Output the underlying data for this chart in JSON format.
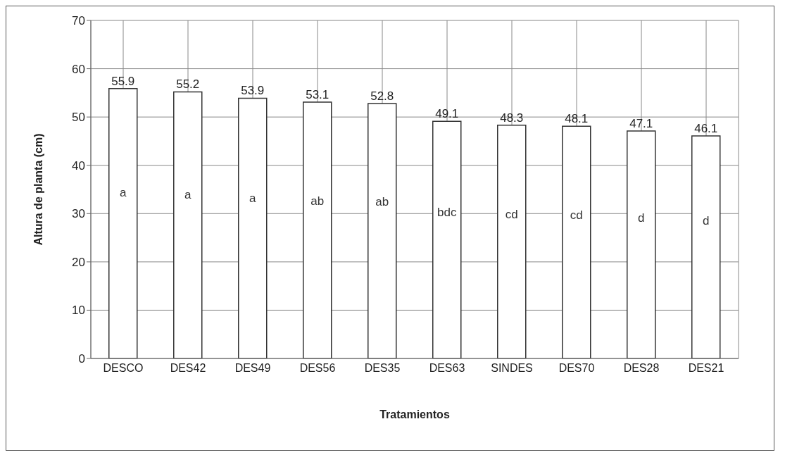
{
  "chart_data": {
    "type": "bar",
    "xlabel": "Tratamientos",
    "ylabel": "Altura de planta (cm)",
    "categories": [
      "DESCO",
      "DES42",
      "DES49",
      "DES56",
      "DES35",
      "DES63",
      "SINDES",
      "DES70",
      "DES28",
      "DES21"
    ],
    "values": [
      55.9,
      55.2,
      53.9,
      53.1,
      52.8,
      49.1,
      48.3,
      48.1,
      47.1,
      46.1
    ],
    "color": "#ffffff",
    "data_labels": true,
    "ylim": [
      0,
      70
    ],
    "yticks": [
      0,
      10,
      20,
      30,
      40,
      50,
      60,
      70
    ],
    "grid": true,
    "legend": false,
    "annotations": [
      "a",
      "a",
      "a",
      "ab",
      "ab",
      "bdc",
      "cd",
      "cd",
      "d",
      "d"
    ]
  }
}
